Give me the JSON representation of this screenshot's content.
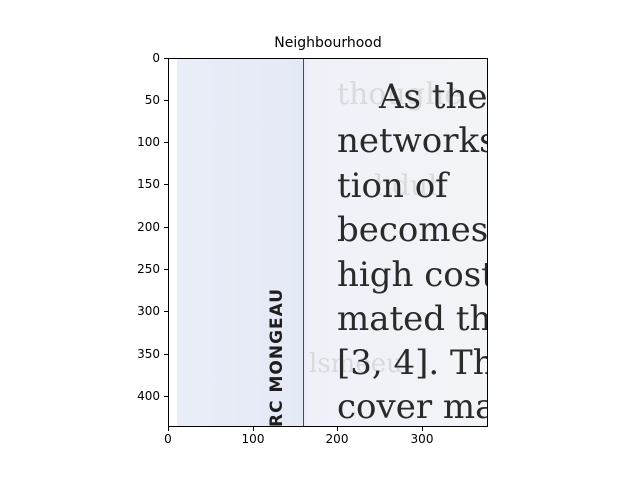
{
  "figure": {
    "title": "Neighbourhood"
  },
  "axes": {
    "y_ticks": [
      "0",
      "50",
      "100",
      "150",
      "200",
      "250",
      "300",
      "350",
      "400"
    ],
    "x_ticks": [
      "0",
      "100",
      "200",
      "300"
    ]
  },
  "image_content": {
    "lines": [
      "As the",
      "networks",
      "tion  of",
      "becomes",
      "high  cost",
      "mated the",
      "[3, 4]. Th",
      "cover mai"
    ],
    "ghost_lines": [
      "thoughe",
      "hduh",
      "lsmeeu"
    ],
    "spine_text": "RC MONGEAU"
  }
}
